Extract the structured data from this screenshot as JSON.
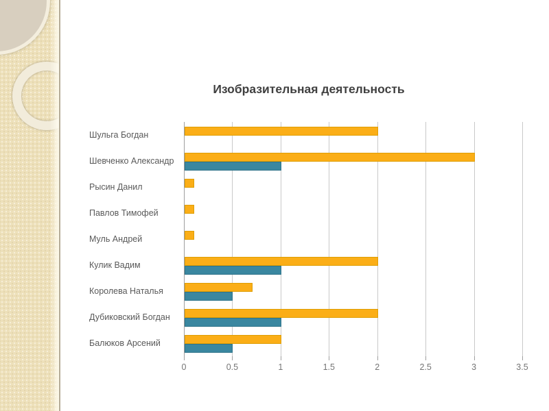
{
  "slide": {
    "background": "#FFFFFF"
  },
  "sidebar": {
    "background": "#EDE0BA",
    "edge_color": "#B5AC97",
    "circle_fill": "#D8CFBF",
    "ring_color": "#F2ECDB"
  },
  "colors": {
    "title_text": "#404040",
    "category_text": "#595959",
    "tick_text": "#757575",
    "gridline": "#C9C9C9",
    "axis_line": "#9E9E9E"
  },
  "chart_data": {
    "type": "bar",
    "orientation": "horizontal",
    "title": "Изобразительная деятельность",
    "categories": [
      "Шульга Богдан",
      "Шевченко Александр",
      "Рысин Данил",
      "Павлов Тимофей",
      "Муль Андрей",
      "Кулик Вадим",
      "Королева Наталья",
      "Дубиковский Богдан",
      "Балюков Арсений"
    ],
    "series": [
      {
        "name": "orange-series",
        "color": "#FBAE17",
        "border_color": "#DE9E05",
        "values": [
          2,
          3,
          0.1,
          0.1,
          0.1,
          2,
          0.7,
          2,
          1
        ]
      },
      {
        "name": "teal-series",
        "color": "#3A87A0",
        "border_color": "#2E7389",
        "values": [
          0,
          1,
          0,
          0,
          0,
          1,
          0.5,
          1,
          0.5
        ]
      }
    ],
    "x_ticks": [
      "0",
      "0.5",
      "1",
      "1.5",
      "2",
      "2.5",
      "3",
      "3.5"
    ],
    "xlim": [
      0,
      3.5
    ],
    "grid": true,
    "legend": false,
    "xlabel": "",
    "ylabel": ""
  }
}
